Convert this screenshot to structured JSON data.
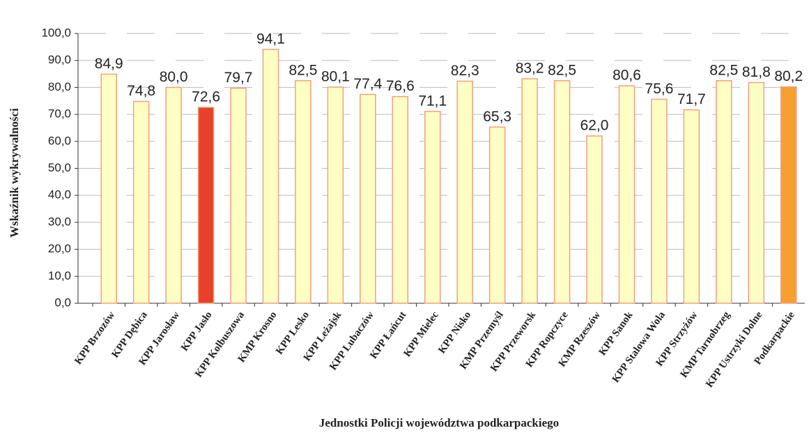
{
  "chart_data": {
    "type": "bar",
    "x_label": "Jednostki Policji województwa podkarpackiego",
    "y_label": "Wskaźnik wykrywalności",
    "categories": [
      "KPP Brzozów",
      "KPP Dębica",
      "KPP Jarosław",
      "KPP Jasło",
      "KPP Kolbuszowa",
      "KMP Krosno",
      "KPP Lesko",
      "KPP Leżajsk",
      "KPP Lubaczów",
      "KPP Łańcut",
      "KPP Mielec",
      "KPP Nisko",
      "KMP Przemyśl",
      "KPP Przeworsk",
      "KPP Ropczyce",
      "KMP Rzeszów",
      "KPP Sanok",
      "KPP Stalowa Wola",
      "KPP Strzyżów",
      "KMP Tarnobrzeg",
      "KPP Ustrzyki Dolne",
      "Podkarpackie"
    ],
    "values": [
      84.9,
      74.8,
      80.0,
      72.6,
      79.7,
      94.1,
      82.5,
      80.1,
      77.4,
      76.6,
      71.1,
      82.3,
      65.3,
      83.2,
      82.5,
      62.0,
      80.6,
      75.6,
      71.7,
      82.5,
      81.8,
      80.2
    ],
    "value_labels": [
      "84,9",
      "74,8",
      "80,0",
      "72,6",
      "79,7",
      "94,1",
      "82,5",
      "80,1",
      "77,4",
      "76,6",
      "71,1",
      "82,3",
      "65,3",
      "83,2",
      "82,5",
      "62,0",
      "80,6",
      "75,6",
      "71,7",
      "82,5",
      "81,8",
      "80,2"
    ],
    "colors": [
      "#ffffc4",
      "#ffffc4",
      "#ffffc4",
      "#e8402a",
      "#ffffc4",
      "#ffffc4",
      "#ffffc4",
      "#ffffc4",
      "#ffffc4",
      "#ffffc4",
      "#ffffc4",
      "#ffffc4",
      "#ffffc4",
      "#ffffc4",
      "#ffffc4",
      "#ffffc4",
      "#ffffc4",
      "#ffffc4",
      "#ffffc4",
      "#ffffc4",
      "#ffffc4",
      "#f5a030"
    ],
    "edge_color": "#f0a080",
    "ylim": [
      0,
      100
    ],
    "yticks": [
      {
        "value": 0,
        "label": "0,0"
      },
      {
        "value": 10,
        "label": "10,0"
      },
      {
        "value": 20,
        "label": "20,0"
      },
      {
        "value": 30,
        "label": "30,0"
      },
      {
        "value": 40,
        "label": "40,0"
      },
      {
        "value": 50,
        "label": "50,0"
      },
      {
        "value": 60,
        "label": "60,0"
      },
      {
        "value": 70,
        "label": "70,0"
      },
      {
        "value": 80,
        "label": "80,0"
      },
      {
        "value": 90,
        "label": "90,0"
      },
      {
        "value": 100,
        "label": "100,0"
      }
    ],
    "grid": true
  }
}
